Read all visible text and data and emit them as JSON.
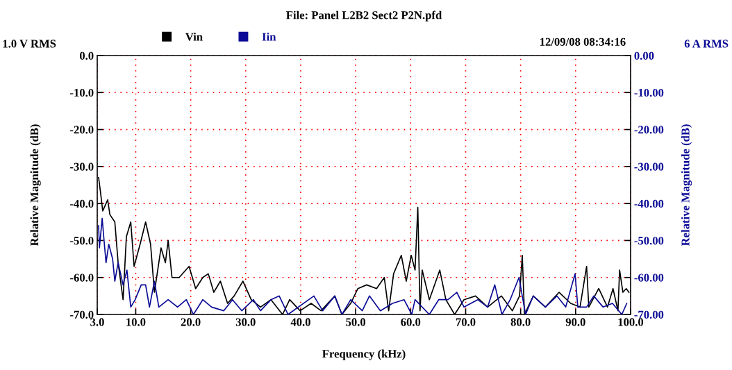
{
  "chart_data": {
    "type": "line",
    "title": "File: Panel L2B2 Sect2 P2N.pfd",
    "xlabel": "Frequency (kHz)",
    "ylabel": "Relative Magnitude (dB)",
    "y2label": "Relative Magnitude (dB)",
    "annotations": [
      "1.0 V RMS",
      "6 A RMS",
      "12/09/08 08:34:16"
    ],
    "xlim": [
      3,
      100
    ],
    "xticks": [
      {
        "value": 3,
        "label": "3.0"
      },
      {
        "value": 10,
        "label": "10.0"
      },
      {
        "value": 20,
        "label": "20.0"
      },
      {
        "value": 30,
        "label": "30.0"
      },
      {
        "value": 40,
        "label": "40.0"
      },
      {
        "value": 50,
        "label": "50.0"
      },
      {
        "value": 60,
        "label": "60.0"
      },
      {
        "value": 70,
        "label": "70.0"
      },
      {
        "value": 80,
        "label": "80.0"
      },
      {
        "value": 90,
        "label": "90.0"
      },
      {
        "value": 100,
        "label": "100.0"
      }
    ],
    "ylim": [
      -70,
      0
    ],
    "yticks": [
      {
        "value": 0,
        "label": "0.0"
      },
      {
        "value": -10,
        "label": "-10.0"
      },
      {
        "value": -20,
        "label": "-20.0"
      },
      {
        "value": -30,
        "label": "-30.0"
      },
      {
        "value": -40,
        "label": "-40.0"
      },
      {
        "value": -50,
        "label": "-50.0"
      },
      {
        "value": -60,
        "label": "-60.0"
      },
      {
        "value": -70,
        "label": "-70.0"
      }
    ],
    "y2lim": [
      -70,
      0
    ],
    "y2ticks": [
      {
        "value": 0,
        "label": "0.00"
      },
      {
        "value": -10,
        "label": "-10.00"
      },
      {
        "value": -20,
        "label": "-20.00"
      },
      {
        "value": -30,
        "label": "-30.00"
      },
      {
        "value": -40,
        "label": "-40.00"
      },
      {
        "value": -50,
        "label": "-50.00"
      },
      {
        "value": -60,
        "label": "-60.00"
      },
      {
        "value": -70,
        "label": "-70.00"
      }
    ],
    "grid": true,
    "legend": "top",
    "marker": "none",
    "line_style": "solid",
    "series": [
      {
        "name": "Vin",
        "color": "#000000",
        "x": [
          3.25,
          3.6,
          4.0,
          4.9,
          5.3,
          6.2,
          6.8,
          7.7,
          8.3,
          9.1,
          9.7,
          10.8,
          11.8,
          12.7,
          13.4,
          14.6,
          15.4,
          15.9,
          16.6,
          17.9,
          19.7,
          20.9,
          22.2,
          23.2,
          24.2,
          25.4,
          26.7,
          27.9,
          29.5,
          31.0,
          32.7,
          34.6,
          36.7,
          38.0,
          39.9,
          41.9,
          43.7,
          46.2,
          47.5,
          49.1,
          50.4,
          52.0,
          53.8,
          55.2,
          56.0,
          56.9,
          58.3,
          59.2,
          60.1,
          60.8,
          61.3,
          61.7,
          62.1,
          63.4,
          65.3,
          66.4,
          68.0,
          69.7,
          71.8,
          74.0,
          76.5,
          78.5,
          79.8,
          80.3,
          80.7,
          82.3,
          84.5,
          87.0,
          89.1,
          90.8,
          92.0,
          92.4,
          94.2,
          95.8,
          96.8,
          97.7,
          98.0,
          98.6,
          99.2,
          99.7
        ],
        "values": [
          -33,
          -37,
          -42,
          -39,
          -43,
          -45,
          -56,
          -66,
          -49,
          -45,
          -57,
          -51,
          -45,
          -51,
          -64,
          -52,
          -56,
          -50,
          -60,
          -60,
          -57,
          -63,
          -60,
          -59,
          -64,
          -61,
          -67,
          -65,
          -61,
          -66,
          -68,
          -66,
          -70,
          -66,
          -69,
          -67,
          -69,
          -65,
          -70,
          -67,
          -63,
          -62,
          -63,
          -60,
          -69,
          -59,
          -54,
          -61,
          -54,
          -58,
          -41,
          -69,
          -58,
          -66,
          -58,
          -66,
          -70,
          -66,
          -65,
          -68,
          -65,
          -69,
          -65,
          -54,
          -70,
          -65,
          -68,
          -64,
          -67,
          -68,
          -57,
          -68,
          -63,
          -68,
          -63,
          -69,
          -58,
          -64,
          -63,
          -64
        ]
      },
      {
        "name": "Iin",
        "color": "#0a0a96",
        "axis": "y2",
        "x": [
          3.25,
          3.4,
          3.9,
          4.3,
          4.6,
          5.1,
          5.8,
          6.2,
          6.8,
          7.7,
          8.4,
          9.1,
          9.9,
          11.0,
          11.8,
          12.5,
          13.4,
          14.2,
          15.9,
          17.6,
          19.2,
          20.5,
          22.2,
          23.8,
          26.0,
          27.6,
          29.3,
          31.4,
          32.7,
          34.6,
          36.1,
          37.7,
          42.4,
          44.0,
          46.2,
          47.5,
          49.1,
          51.2,
          52.5,
          54.5,
          56.7,
          58.8,
          60.2,
          60.8,
          63.4,
          65.1,
          66.8,
          68.4,
          69.7,
          72.2,
          74.0,
          75.3,
          76.6,
          78.1,
          79.7,
          80.9,
          82.3,
          84.5,
          86.6,
          88.2,
          89.9,
          90.4,
          92.0,
          93.3,
          95.0,
          96.7,
          98.4,
          99.3
        ],
        "values": [
          -46,
          -52,
          -44,
          -51,
          -56,
          -51,
          -55,
          -61,
          -56,
          -62,
          -58,
          -68,
          -66,
          -62,
          -62,
          -68,
          -61,
          -68,
          -66,
          -68,
          -66,
          -70,
          -66,
          -68,
          -69,
          -66,
          -69,
          -66,
          -69,
          -66,
          -65,
          -70,
          -65,
          -69,
          -65,
          -70,
          -66,
          -69,
          -65,
          -69,
          -67,
          -66,
          -70,
          -66,
          -70,
          -66,
          -66,
          -64,
          -68,
          -66,
          -68,
          -62,
          -70,
          -66,
          -60,
          -70,
          -65,
          -68,
          -65,
          -68,
          -59,
          -68,
          -68,
          -65,
          -68,
          -67,
          -70,
          -67
        ]
      }
    ]
  }
}
